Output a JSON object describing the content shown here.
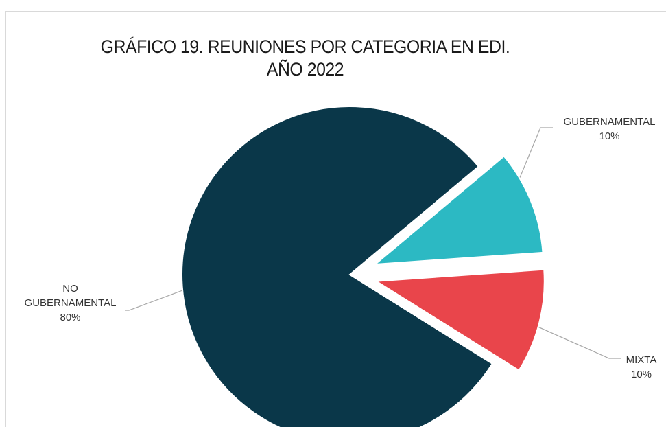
{
  "chart_data": {
    "type": "pie",
    "title": [
      "GRÁFICO 19. REUNIONES POR CATEGORIA EN EDI.",
      "AÑO 2022"
    ],
    "categories": [
      "NO GUBERNAMENTAL",
      "GUBERNAMENTAL",
      "MIXTA"
    ],
    "values": [
      80,
      10,
      10
    ],
    "value_labels": [
      "80%",
      "10%",
      "10%"
    ],
    "label_lines": [
      [
        "NO",
        "GUBERNAMENTAL"
      ],
      [
        "GUBERNAMENTAL"
      ],
      [
        "MIXTA"
      ]
    ],
    "colors": [
      "#0a3749",
      "#2cb9c3",
      "#e9454b"
    ],
    "exploded": [
      false,
      true,
      true
    ],
    "legend": "none"
  }
}
